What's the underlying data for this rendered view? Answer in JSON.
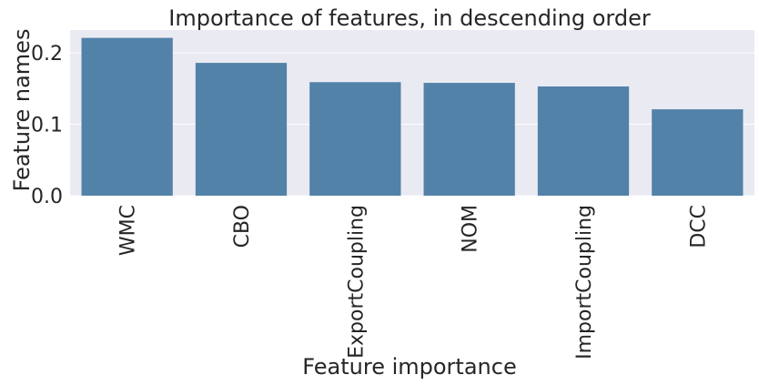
{
  "chart_data": {
    "type": "bar",
    "title": "Importance of features, in descending order",
    "xlabel": "Feature importance",
    "ylabel": "Feature names",
    "categories": [
      "WMC",
      "CBO",
      "ExportCoupling",
      "NOM",
      "ImportCoupling",
      "DCC"
    ],
    "values": [
      0.221,
      0.186,
      0.159,
      0.158,
      0.153,
      0.121
    ],
    "yticks": [
      0.0,
      0.1,
      0.2
    ],
    "ytick_labels": [
      "0.0",
      "0.1",
      "0.2"
    ],
    "ylim": [
      0,
      0.232
    ],
    "grid": true,
    "legend": "none",
    "colors": {
      "bar": "#5282a8",
      "plot_background": "#eaeaf2",
      "grid": "#ffffff",
      "text": "#262626"
    }
  }
}
